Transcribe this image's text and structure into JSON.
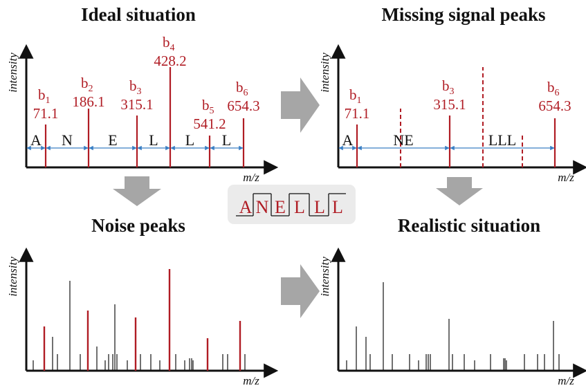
{
  "panels": [
    {
      "id": "ideal",
      "title": "Ideal situation",
      "ylabel": "intensity",
      "xlabel": "m/z",
      "peaks": [
        {
          "name": "b",
          "index": "1",
          "mass": "71.1"
        },
        {
          "name": "b",
          "index": "2",
          "mass": "186.1"
        },
        {
          "name": "b",
          "index": "3",
          "mass": "315.1"
        },
        {
          "name": "b",
          "index": "4",
          "mass": "428.2"
        },
        {
          "name": "b",
          "index": "5",
          "mass": "541.2"
        },
        {
          "name": "b",
          "index": "6",
          "mass": "654.3"
        }
      ],
      "segments": [
        "A",
        "N",
        "E",
        "L",
        "L",
        "L"
      ]
    },
    {
      "id": "missing",
      "title": "Missing signal peaks",
      "ylabel": "intensity",
      "xlabel": "m/z",
      "peaks": [
        {
          "name": "b",
          "index": "1",
          "mass": "71.1"
        },
        {
          "name": "b",
          "index": "3",
          "mass": "315.1"
        },
        {
          "name": "b",
          "index": "6",
          "mass": "654.3"
        }
      ],
      "segments": [
        "A",
        "NE",
        "LLL"
      ]
    },
    {
      "id": "noise",
      "title": "Noise peaks",
      "ylabel": "intensity",
      "xlabel": "m/z"
    },
    {
      "id": "realistic",
      "title": "Realistic situation",
      "ylabel": "intensity",
      "xlabel": "m/z"
    }
  ],
  "sequence": [
    "A",
    "N",
    "E",
    "L",
    "L",
    "L"
  ],
  "colors": {
    "signal": "#b01c24",
    "noise": "#111111",
    "arrow": "#a6a6a6",
    "interval": "#3a7fc4",
    "sequence_box": "#ebebeb"
  }
}
